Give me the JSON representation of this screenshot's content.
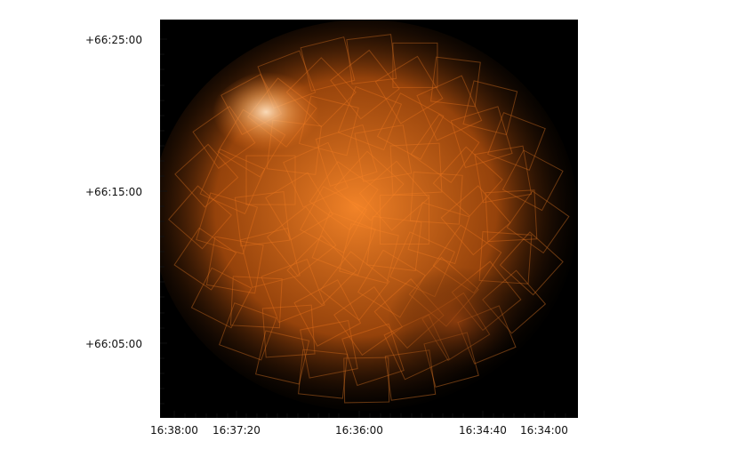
{
  "image": {
    "description_type": "astronomical-coverage-map",
    "background_color": "#000000",
    "glow_color": "#ff7a1a",
    "highlight_color": "#ffd3a3"
  },
  "axes": {
    "y_ticks": [
      {
        "label": "+66:25:00"
      },
      {
        "label": "+66:15:00"
      },
      {
        "label": "+66:05:00"
      }
    ],
    "x_ticks": [
      {
        "label": "16:38:00"
      },
      {
        "label": "16:37:20"
      },
      {
        "label": "16:36:00"
      },
      {
        "label": "16:34:40"
      },
      {
        "label": "16:34:00"
      }
    ]
  }
}
